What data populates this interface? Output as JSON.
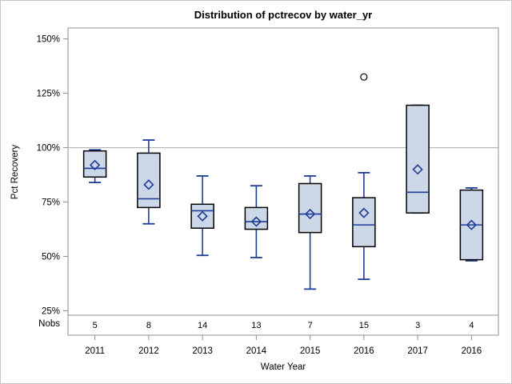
{
  "chart_data": {
    "type": "boxplot",
    "title": "Distribution of pctrecov by water_yr",
    "xlabel": "Water Year",
    "ylabel": "Pct Recovery",
    "nobs_label": "Nobs",
    "categories": [
      "2011",
      "2012",
      "2013",
      "2014",
      "2015",
      "2016",
      "2017",
      "2016"
    ],
    "nobs": [
      5,
      8,
      14,
      13,
      7,
      15,
      3,
      4
    ],
    "y_ticks": [
      150,
      125,
      100,
      75,
      50,
      25
    ],
    "y_tick_labels": [
      "150%",
      "125%",
      "100%",
      "75%",
      "50%",
      "25%"
    ],
    "ylim": [
      23,
      155
    ],
    "reference_line": 100,
    "grid": "off",
    "legend": "none",
    "series": [
      {
        "category": "2011",
        "n": 5,
        "low": 84,
        "q1": 86.5,
        "median": 90.5,
        "q3": 98.5,
        "high": 99,
        "mean": 92,
        "outliers": []
      },
      {
        "category": "2012",
        "n": 8,
        "low": 65,
        "q1": 72.5,
        "median": 76.5,
        "q3": 97.5,
        "high": 103.5,
        "mean": 83,
        "outliers": []
      },
      {
        "category": "2013",
        "n": 14,
        "low": 50.5,
        "q1": 63,
        "median": 71,
        "q3": 74,
        "high": 87,
        "mean": 68.5,
        "outliers": []
      },
      {
        "category": "2014",
        "n": 13,
        "low": 49.5,
        "q1": 62.5,
        "median": 66,
        "q3": 72.5,
        "high": 82.5,
        "mean": 66,
        "outliers": []
      },
      {
        "category": "2015",
        "n": 7,
        "low": 35,
        "q1": 61,
        "median": 69.5,
        "q3": 83.5,
        "high": 87,
        "mean": 69.5,
        "outliers": []
      },
      {
        "category": "2016",
        "n": 15,
        "low": 39.5,
        "q1": 54.5,
        "median": 64.5,
        "q3": 77,
        "high": 88.5,
        "mean": 70,
        "outliers": [
          132.5
        ]
      },
      {
        "category": "2017",
        "n": 3,
        "low": 70,
        "q1": 70,
        "median": 79.5,
        "q3": 119.5,
        "high": 119.5,
        "mean": 90,
        "outliers": []
      },
      {
        "category": "2016",
        "n": 4,
        "low": 48,
        "q1": 48.5,
        "median": 64.5,
        "q3": 80.5,
        "high": 81.5,
        "mean": 64.5,
        "outliers": []
      }
    ],
    "colors": {
      "box_fill": "#ccd7e8",
      "box_stroke": "#000000",
      "whisker": "#1e3c96",
      "median": "#1e3c96",
      "mean_marker": "#1e3c96",
      "outlier_stroke": "#000000",
      "frame": "#8f8f8f",
      "reference_line": "#ababab",
      "text": "#000000",
      "canvas_border": "#c6c6c6"
    }
  }
}
